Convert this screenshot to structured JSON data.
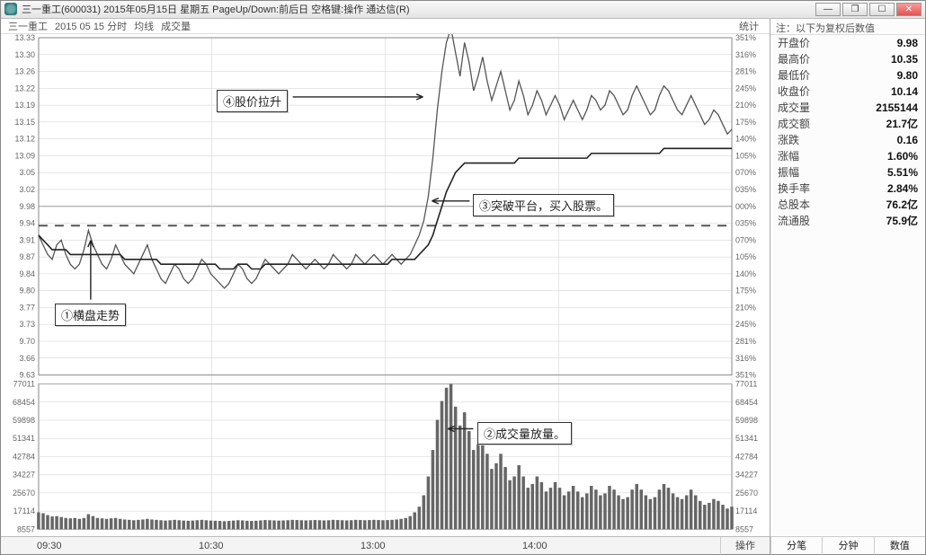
{
  "window": {
    "title": "三一重工(600031) 2015年05月15日 星期五 PageUp/Down:前后日 空格键:操作 通达信(R)",
    "min": "—",
    "restore": "❐",
    "max": "☐",
    "close": "✕"
  },
  "legend": {
    "stock_short": "三一重工",
    "datetime": "2015 05 15 分时",
    "ma_label": "均线",
    "vol_label": "成交量",
    "stat_label": "统计"
  },
  "bottom": {
    "time_labels": [
      "09:30",
      "10:30",
      "13:00",
      "14:00"
    ],
    "action_label": "操作",
    "btn_fenbi": "分笔",
    "btn_fenzhong": "分钟",
    "btn_shuzhi": "数值"
  },
  "side": {
    "header": "注：以下为复权后数值",
    "rows": [
      {
        "k": "开盘价",
        "v": "9.98"
      },
      {
        "k": "最高价",
        "v": "10.35"
      },
      {
        "k": "最低价",
        "v": "9.80"
      },
      {
        "k": "收盘价",
        "v": "10.14"
      },
      {
        "k": "成交量",
        "v": "2155144"
      },
      {
        "k": "成交额",
        "v": "21.7亿"
      },
      {
        "k": "涨跌",
        "v": "0.16"
      },
      {
        "k": "涨幅",
        "v": "1.60%"
      },
      {
        "k": "振幅",
        "v": "5.51%"
      },
      {
        "k": "换手率",
        "v": "2.84%"
      },
      {
        "k": "总股本",
        "v": "76.2亿"
      },
      {
        "k": "流通股",
        "v": "75.9亿"
      }
    ]
  },
  "annotations": {
    "a1": "①横盘走势",
    "a2": "②成交量放量。",
    "a3": "③突破平台，买入股票。",
    "a4": "④股价拉升"
  },
  "price_chart": {
    "type": "intraday-line",
    "yticks_left": [
      "13.33",
      "13.30",
      "13.26",
      "13.22",
      "13.19",
      "13.15",
      "13.12",
      "13.09",
      "3.05",
      "3.02",
      "9.98",
      "9.94",
      "3.91",
      "9.87",
      "9.84",
      "9.80",
      "3.77",
      "3.73",
      "9.70",
      "3.66",
      "9.63"
    ],
    "yticks_right_pct": [
      "351%",
      "316%",
      "281%",
      "245%",
      "210%",
      "175%",
      "140%",
      "105%",
      "070%",
      "035%",
      "000%",
      "035%",
      "070%",
      "105%",
      "140%",
      "175%",
      "210%",
      "245%",
      "281%",
      "316%",
      "351%"
    ],
    "center_price": 9.98,
    "y_min": 9.63,
    "y_max": 10.33,
    "dashed_ref": 9.94,
    "line_color": "#555555",
    "avg_color": "#222222",
    "grid_color": "#cfcfcf",
    "axis_text_color": "#666666",
    "background": "#ffffff",
    "price_series": [
      9.92,
      9.9,
      9.88,
      9.87,
      9.9,
      9.91,
      9.88,
      9.86,
      9.85,
      9.86,
      9.89,
      9.93,
      9.9,
      9.88,
      9.86,
      9.85,
      9.87,
      9.9,
      9.88,
      9.86,
      9.85,
      9.84,
      9.86,
      9.88,
      9.9,
      9.87,
      9.85,
      9.83,
      9.82,
      9.84,
      9.86,
      9.85,
      9.83,
      9.82,
      9.83,
      9.85,
      9.87,
      9.86,
      9.84,
      9.83,
      9.82,
      9.81,
      9.82,
      9.84,
      9.86,
      9.85,
      9.83,
      9.82,
      9.83,
      9.85,
      9.87,
      9.86,
      9.85,
      9.84,
      9.85,
      9.86,
      9.88,
      9.87,
      9.86,
      9.85,
      9.86,
      9.87,
      9.86,
      9.85,
      9.86,
      9.88,
      9.87,
      9.86,
      9.85,
      9.86,
      9.88,
      9.87,
      9.86,
      9.87,
      9.88,
      9.87,
      9.86,
      9.87,
      9.88,
      9.87,
      9.86,
      9.87,
      9.88,
      9.9,
      9.92,
      9.95,
      10.0,
      10.08,
      10.18,
      10.26,
      10.32,
      10.35,
      10.3,
      10.25,
      10.32,
      10.28,
      10.22,
      10.25,
      10.29,
      10.24,
      10.2,
      10.23,
      10.26,
      10.22,
      10.18,
      10.2,
      10.24,
      10.21,
      10.17,
      10.19,
      10.22,
      10.2,
      10.17,
      10.19,
      10.21,
      10.19,
      10.16,
      10.18,
      10.2,
      10.18,
      10.16,
      10.18,
      10.21,
      10.2,
      10.18,
      10.19,
      10.22,
      10.21,
      10.19,
      10.17,
      10.18,
      10.21,
      10.23,
      10.21,
      10.19,
      10.17,
      10.18,
      10.21,
      10.23,
      10.22,
      10.2,
      10.18,
      10.17,
      10.19,
      10.21,
      10.19,
      10.17,
      10.15,
      10.16,
      10.18,
      10.17,
      10.15,
      10.13,
      10.14
    ],
    "avg_series": [
      9.92,
      9.91,
      9.9,
      9.89,
      9.89,
      9.89,
      9.89,
      9.88,
      9.88,
      9.88,
      9.88,
      9.88,
      9.88,
      9.88,
      9.88,
      9.88,
      9.88,
      9.88,
      9.88,
      9.87,
      9.87,
      9.87,
      9.87,
      9.87,
      9.87,
      9.87,
      9.87,
      9.86,
      9.86,
      9.86,
      9.86,
      9.86,
      9.86,
      9.86,
      9.86,
      9.86,
      9.86,
      9.86,
      9.86,
      9.86,
      9.85,
      9.85,
      9.85,
      9.85,
      9.86,
      9.86,
      9.86,
      9.85,
      9.85,
      9.85,
      9.86,
      9.86,
      9.86,
      9.86,
      9.86,
      9.86,
      9.86,
      9.86,
      9.86,
      9.86,
      9.86,
      9.86,
      9.86,
      9.86,
      9.86,
      9.86,
      9.86,
      9.86,
      9.86,
      9.86,
      9.86,
      9.86,
      9.86,
      9.86,
      9.86,
      9.86,
      9.86,
      9.86,
      9.87,
      9.87,
      9.87,
      9.87,
      9.87,
      9.87,
      9.88,
      9.89,
      9.9,
      9.92,
      9.95,
      9.98,
      10.01,
      10.03,
      10.05,
      10.06,
      10.07,
      10.07,
      10.07,
      10.07,
      10.07,
      10.07,
      10.07,
      10.07,
      10.07,
      10.07,
      10.07,
      10.07,
      10.08,
      10.08,
      10.08,
      10.08,
      10.08,
      10.08,
      10.08,
      10.08,
      10.08,
      10.08,
      10.08,
      10.08,
      10.08,
      10.08,
      10.08,
      10.08,
      10.09,
      10.09,
      10.09,
      10.09,
      10.09,
      10.09,
      10.09,
      10.09,
      10.09,
      10.09,
      10.09,
      10.09,
      10.09,
      10.09,
      10.09,
      10.09,
      10.1,
      10.1,
      10.1,
      10.1,
      10.1,
      10.1,
      10.1,
      10.1,
      10.1,
      10.1,
      10.1,
      10.1,
      10.1,
      10.1,
      10.1,
      10.1
    ]
  },
  "volume_chart": {
    "type": "bar",
    "yticks": [
      "77011",
      "68454",
      "59898",
      "51341",
      "42784",
      "34227",
      "25670",
      "17114",
      "8557"
    ],
    "y_max": 77011,
    "bar_color": "#666666",
    "grid_color": "#cfcfcf",
    "series": [
      9000,
      8500,
      7500,
      6800,
      7000,
      6500,
      6000,
      5800,
      6000,
      5500,
      6000,
      8000,
      7000,
      6000,
      5800,
      5500,
      5800,
      6000,
      5500,
      5200,
      5000,
      4800,
      5000,
      5200,
      5500,
      5200,
      5000,
      4800,
      4600,
      4800,
      5000,
      4800,
      4600,
      4500,
      4600,
      4800,
      5000,
      4800,
      4600,
      4500,
      4400,
      4300,
      4400,
      4600,
      4800,
      4700,
      4500,
      4400,
      4500,
      4700,
      4900,
      4800,
      4700,
      4600,
      4700,
      4800,
      5000,
      4900,
      4800,
      4700,
      4800,
      4900,
      4800,
      4700,
      4800,
      5000,
      4900,
      4800,
      4700,
      4800,
      5000,
      4900,
      4800,
      4900,
      5000,
      4900,
      4800,
      4900,
      5000,
      5200,
      5500,
      6000,
      7000,
      9000,
      12000,
      18000,
      28000,
      42000,
      58000,
      68000,
      75000,
      77000,
      65000,
      55000,
      62000,
      52000,
      42000,
      45000,
      50000,
      40000,
      32000,
      35000,
      40000,
      33000,
      26000,
      28000,
      34000,
      28000,
      22000,
      24000,
      28000,
      25000,
      20000,
      22000,
      25000,
      22000,
      18000,
      20000,
      23000,
      20000,
      17000,
      19000,
      23000,
      21000,
      18000,
      19000,
      23000,
      21000,
      18000,
      16000,
      17000,
      21000,
      24000,
      21000,
      18000,
      16000,
      17000,
      21000,
      24000,
      22000,
      19000,
      17000,
      16000,
      18000,
      21000,
      18000,
      15000,
      13000,
      14000,
      16000,
      15000,
      13000,
      11000,
      12000
    ]
  }
}
